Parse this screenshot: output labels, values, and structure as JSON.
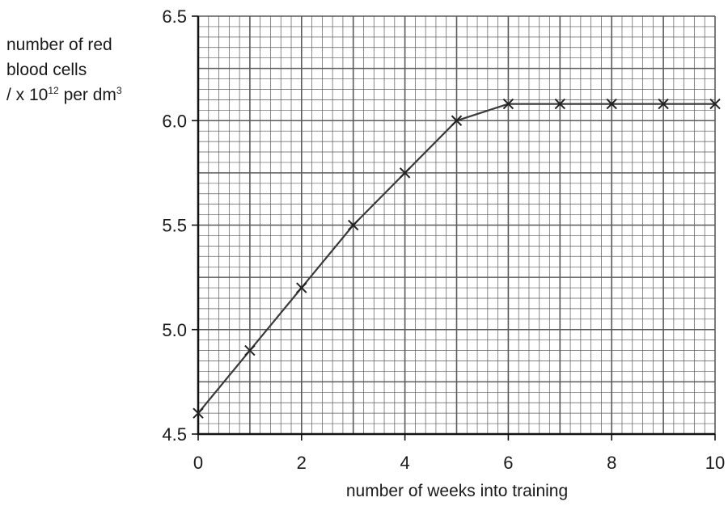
{
  "chart_data": {
    "type": "line",
    "xlabel": "number of weeks into training",
    "ylabel": {
      "line1": "number of red",
      "line2": "blood cells",
      "line3_pre": "/ x 10",
      "line3_exp": "12",
      "line3_mid": " per dm",
      "line3_exp2": "3"
    },
    "xlim": [
      0,
      10
    ],
    "ylim": [
      4.5,
      6.5
    ],
    "xticks": [
      "0",
      "2",
      "4",
      "6",
      "8",
      "10"
    ],
    "yticks": [
      "4.5",
      "5.0",
      "5.5",
      "6.0",
      "6.5"
    ],
    "grid": true,
    "marker": "x",
    "series": [
      {
        "x": [
          0,
          1,
          2,
          3,
          4,
          5,
          6,
          7,
          8,
          9,
          10
        ],
        "y": [
          4.6,
          4.9,
          5.2,
          5.5,
          5.75,
          6.0,
          6.08,
          6.08,
          6.08,
          6.08,
          6.08
        ]
      }
    ],
    "colors": {
      "line": "#3a3a3a",
      "grid": "#5a5a5a",
      "axis": "#111111"
    }
  }
}
